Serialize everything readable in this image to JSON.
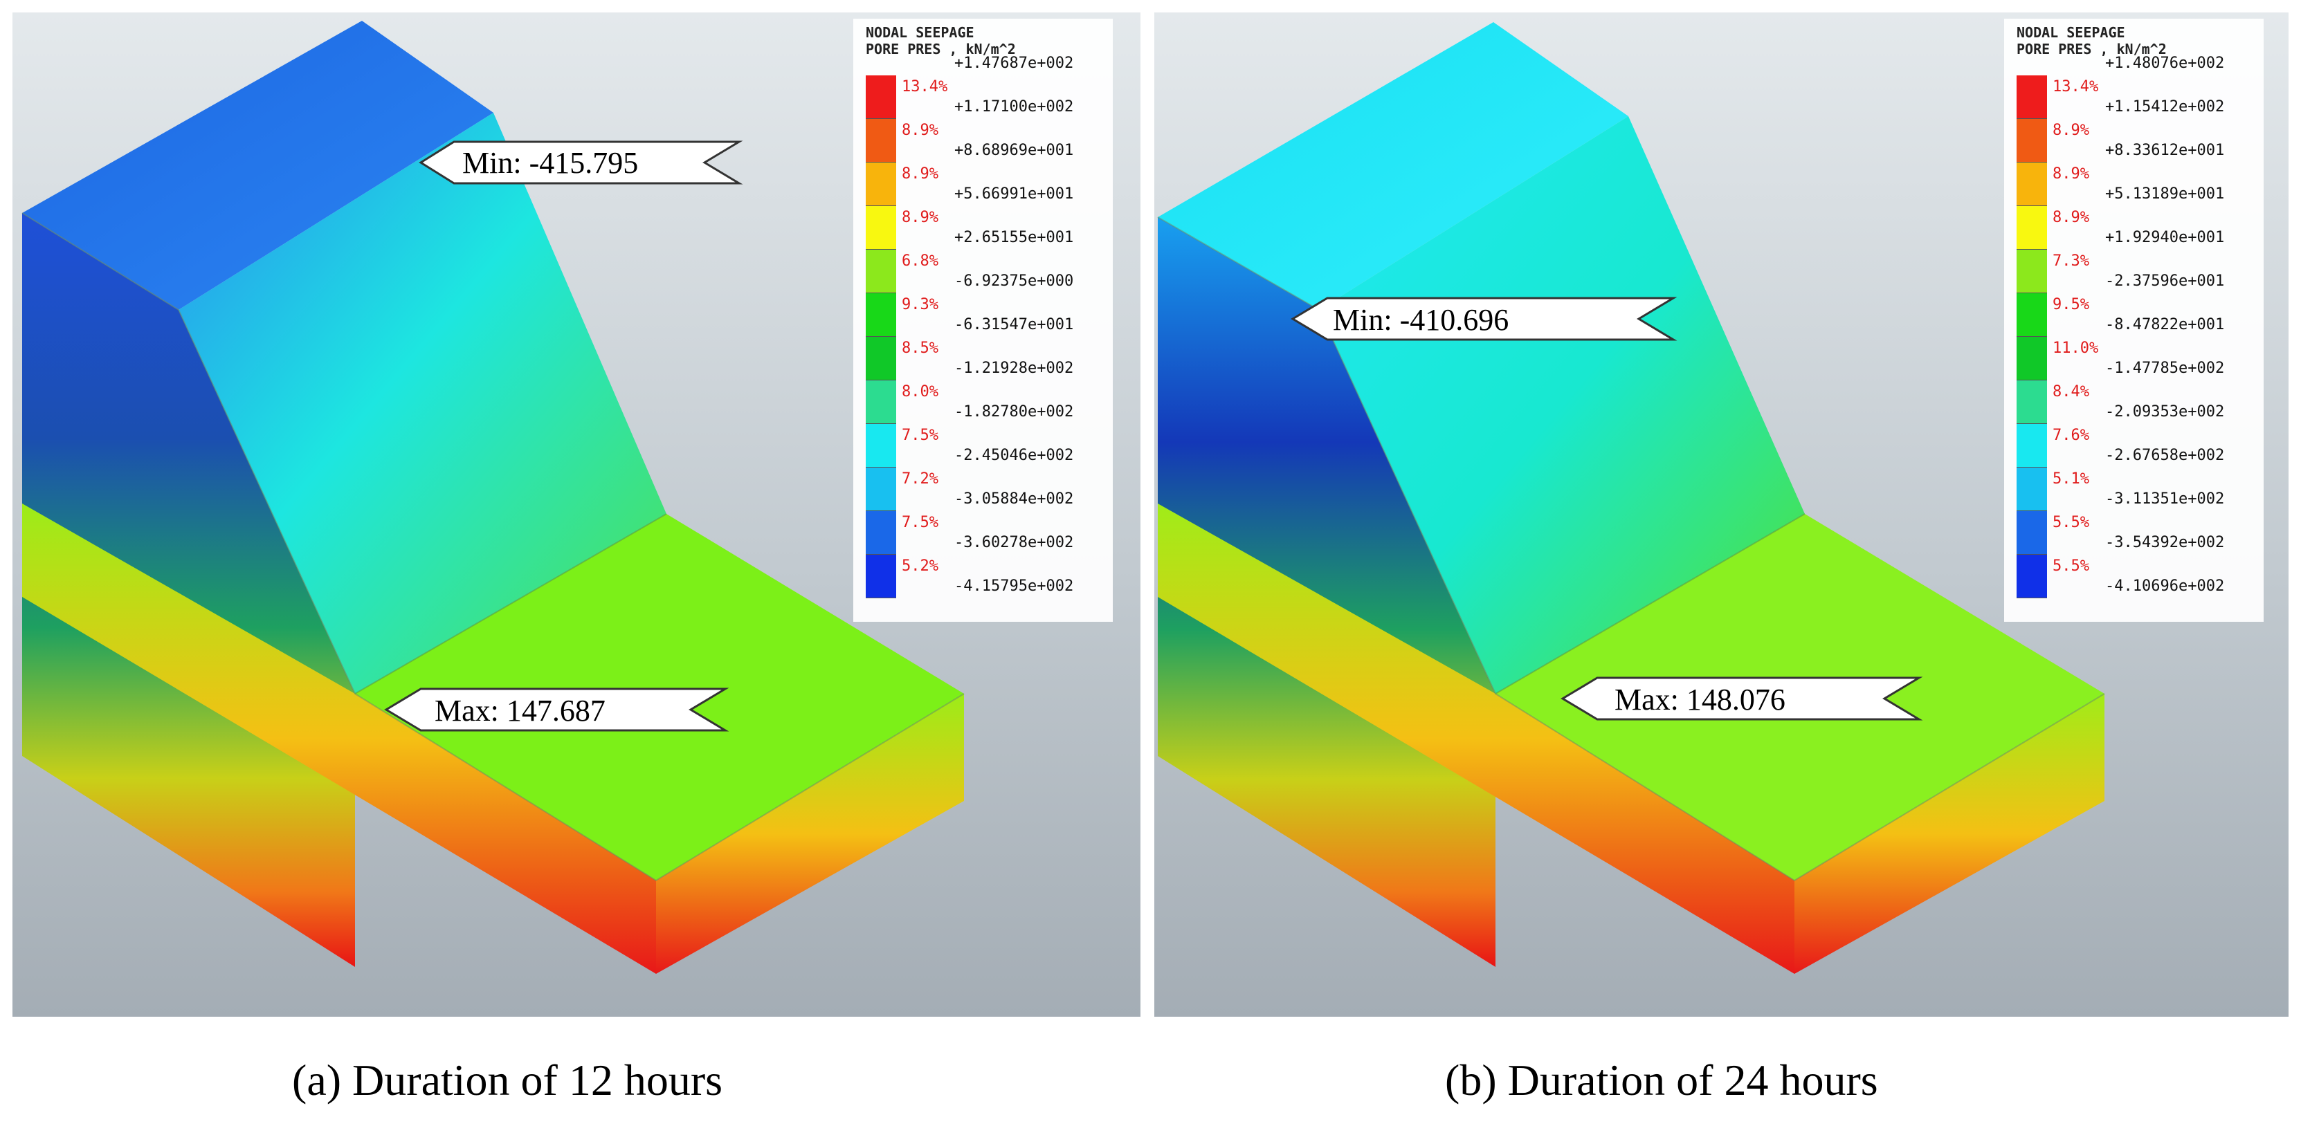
{
  "panels": [
    {
      "id": "a",
      "caption": "(a) Duration of 12 hours",
      "legend": {
        "title_line1": "NODAL SEEPAGE",
        "title_line2": "PORE PRES , kN/m^2",
        "values": [
          "+1.47687e+002",
          "+1.17100e+002",
          "+8.68969e+001",
          "+5.66991e+001",
          "+2.65155e+001",
          "-6.92375e+000",
          "-6.31547e+001",
          "-1.21928e+002",
          "-1.82780e+002",
          "-2.45046e+002",
          "-3.05884e+002",
          "-3.60278e+002",
          "-4.15795e+002"
        ],
        "percents": [
          "13.4%",
          "8.9%",
          "8.9%",
          "8.9%",
          "6.8%",
          "9.3%",
          "8.5%",
          "8.0%",
          "7.5%",
          "7.2%",
          "7.5%",
          "5.2%"
        ]
      },
      "min_label": "Min:  -415.795",
      "max_label": "Max:  147.687",
      "top_face_color": "#1f6fe6",
      "top_face_color_light": "#2b86f2",
      "slope_color_top": "#2a8cf0",
      "slope_color_mid": "#1de6e0",
      "slope_color_bottom": "#3be070",
      "base_face_color": "#7cf018"
    },
    {
      "id": "b",
      "caption": "(b) Duration of 24 hours",
      "legend": {
        "title_line1": "NODAL SEEPAGE",
        "title_line2": "PORE PRES , kN/m^2",
        "values": [
          "+1.48076e+002",
          "+1.15412e+002",
          "+8.33612e+001",
          "+5.13189e+001",
          "+1.92940e+001",
          "-2.37596e+001",
          "-8.47822e+001",
          "-1.47785e+002",
          "-2.09353e+002",
          "-2.67658e+002",
          "-3.11351e+002",
          "-3.54392e+002",
          "-4.10696e+002"
        ],
        "percents": [
          "13.4%",
          "8.9%",
          "8.9%",
          "8.9%",
          "7.3%",
          "9.5%",
          "11.0%",
          "8.4%",
          "7.6%",
          "5.1%",
          "5.5%",
          "5.5%"
        ]
      },
      "min_label": "Min:  -410.696",
      "max_label": "Max:  148.076",
      "top_face_color": "#19e0f4",
      "top_face_color_light": "#30eefa",
      "slope_color_top": "#20e8f4",
      "slope_color_mid": "#18e8d8",
      "slope_color_bottom": "#40e038",
      "base_face_color": "#8af020"
    }
  ],
  "legend_colors": [
    "#ee1c1c",
    "#f05a14",
    "#f8b40c",
    "#f8f810",
    "#8ce81c",
    "#18d818",
    "#10c828",
    "#2cdc90",
    "#18e8f0",
    "#18c0f0",
    "#1a68e8",
    "#1030e8"
  ],
  "colors": {
    "background_top": "#dfe4e8",
    "background_bottom": "#a9b3bb",
    "front_face_top": "#2b40c8",
    "front_face_bottom": "#e81414"
  }
}
